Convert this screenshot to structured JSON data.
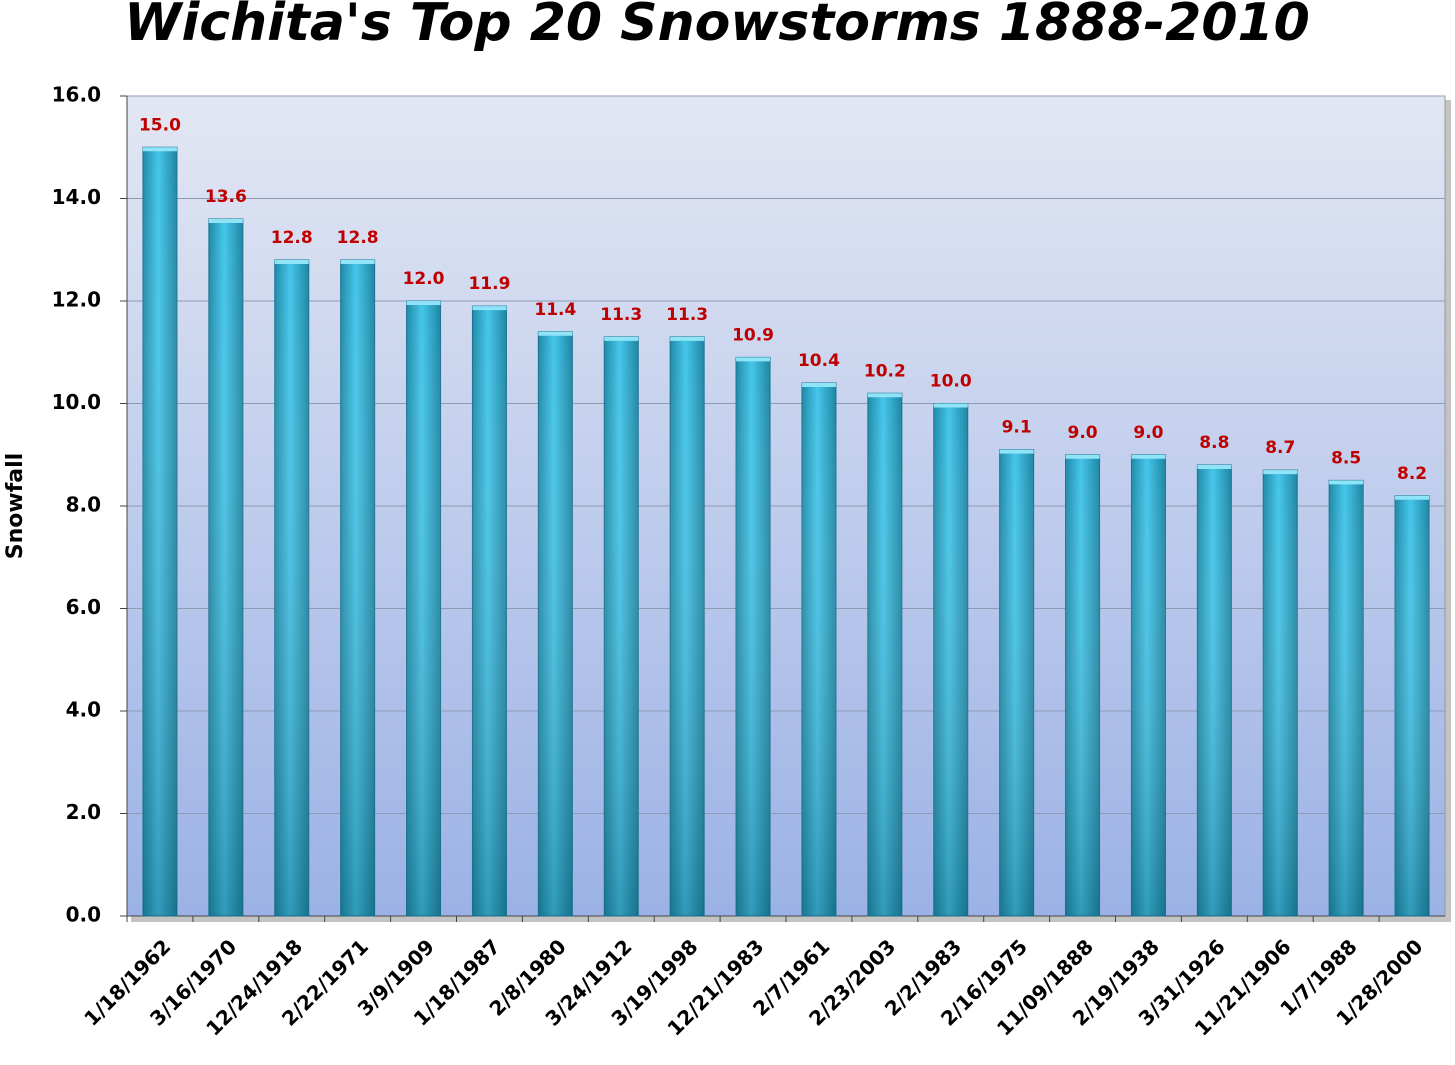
{
  "chart_data": {
    "type": "bar",
    "title": "Wichita's Top 20 Snowstorms 1888-2010",
    "y_label": "Snowfall",
    "categories": [
      "1/18/1962",
      "3/16/1970",
      "12/24/1918",
      "2/22/1971",
      "3/9/1909",
      "1/18/1987",
      "2/8/1980",
      "3/24/1912",
      "3/19/1998",
      "12/21/1983",
      "2/7/1961",
      "2/23/2003",
      "2/2/1983",
      "2/16/1975",
      "11/09/1888",
      "2/19/1938",
      "3/31/1926",
      "11/21/1906",
      "1/7/1988",
      "1/28/2000"
    ],
    "values": [
      15.0,
      13.6,
      12.8,
      12.8,
      12.0,
      11.9,
      11.4,
      11.3,
      11.3,
      10.9,
      10.4,
      10.2,
      10.0,
      9.1,
      9.0,
      9.0,
      8.8,
      8.7,
      8.5,
      8.2
    ],
    "value_labels": [
      "15.0",
      "13.6",
      "12.8",
      "12.8",
      "12.0",
      "11.9",
      "11.4",
      "11.3",
      "11.3",
      "10.9",
      "10.4",
      "10.2",
      "10.0",
      "9.1",
      "9.0",
      "9.0",
      "8.8",
      "8.7",
      "8.5",
      "8.2"
    ],
    "color": "#3ab8dc",
    "label_color": "#c00000",
    "ylim": [
      0,
      16
    ],
    "yticks": [
      {
        "value": 0,
        "label": "0.0"
      },
      {
        "value": 2,
        "label": "2.0"
      },
      {
        "value": 4,
        "label": "4.0"
      },
      {
        "value": 6,
        "label": "6.0"
      },
      {
        "value": 8,
        "label": "8.0"
      },
      {
        "value": 10,
        "label": "10.0"
      },
      {
        "value": 12,
        "label": "12.0"
      },
      {
        "value": 14,
        "label": "14.0"
      },
      {
        "value": 16,
        "label": "16.0"
      }
    ],
    "grid": true
  }
}
